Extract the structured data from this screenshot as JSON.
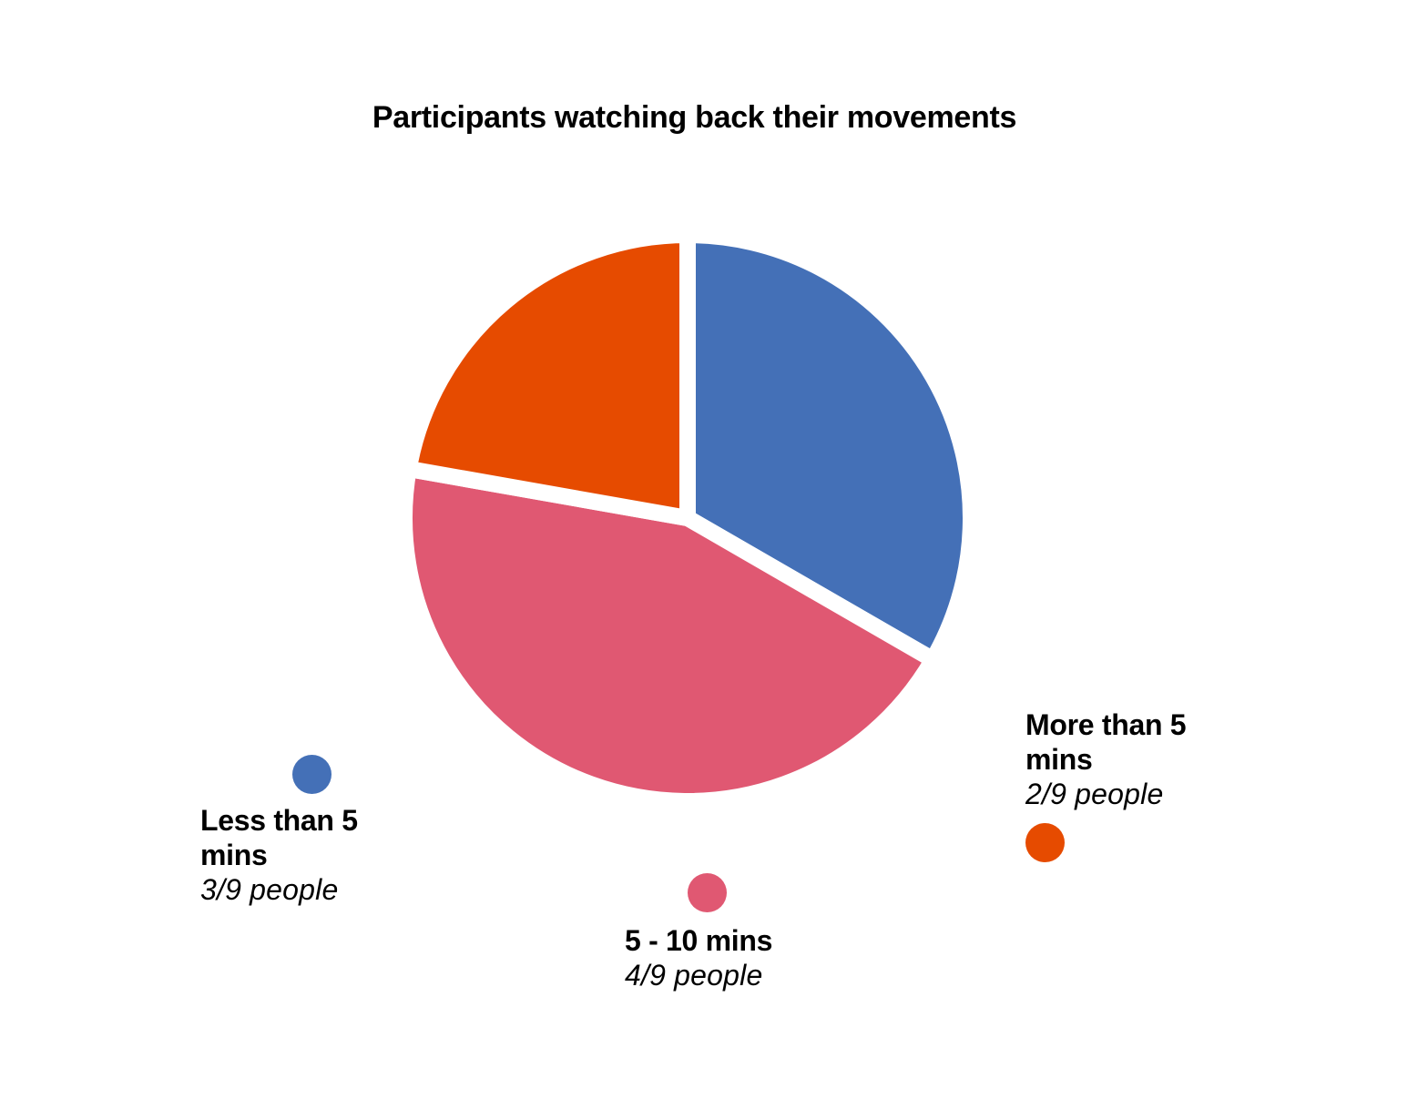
{
  "chart_data": {
    "type": "pie",
    "title": "Participants watching back their movements",
    "slices": [
      {
        "label": "Less than 5 mins",
        "value": 3,
        "value_label": "3/9 people",
        "color": "#4470b7"
      },
      {
        "label": "5 - 10 mins",
        "value": 4,
        "value_label": "4/9 people",
        "color": "#e05872"
      },
      {
        "label": "More than 5 mins",
        "value": 2,
        "value_label": "2/9 people",
        "color": "#e64b00"
      }
    ],
    "total": 9,
    "legend": "around"
  }
}
